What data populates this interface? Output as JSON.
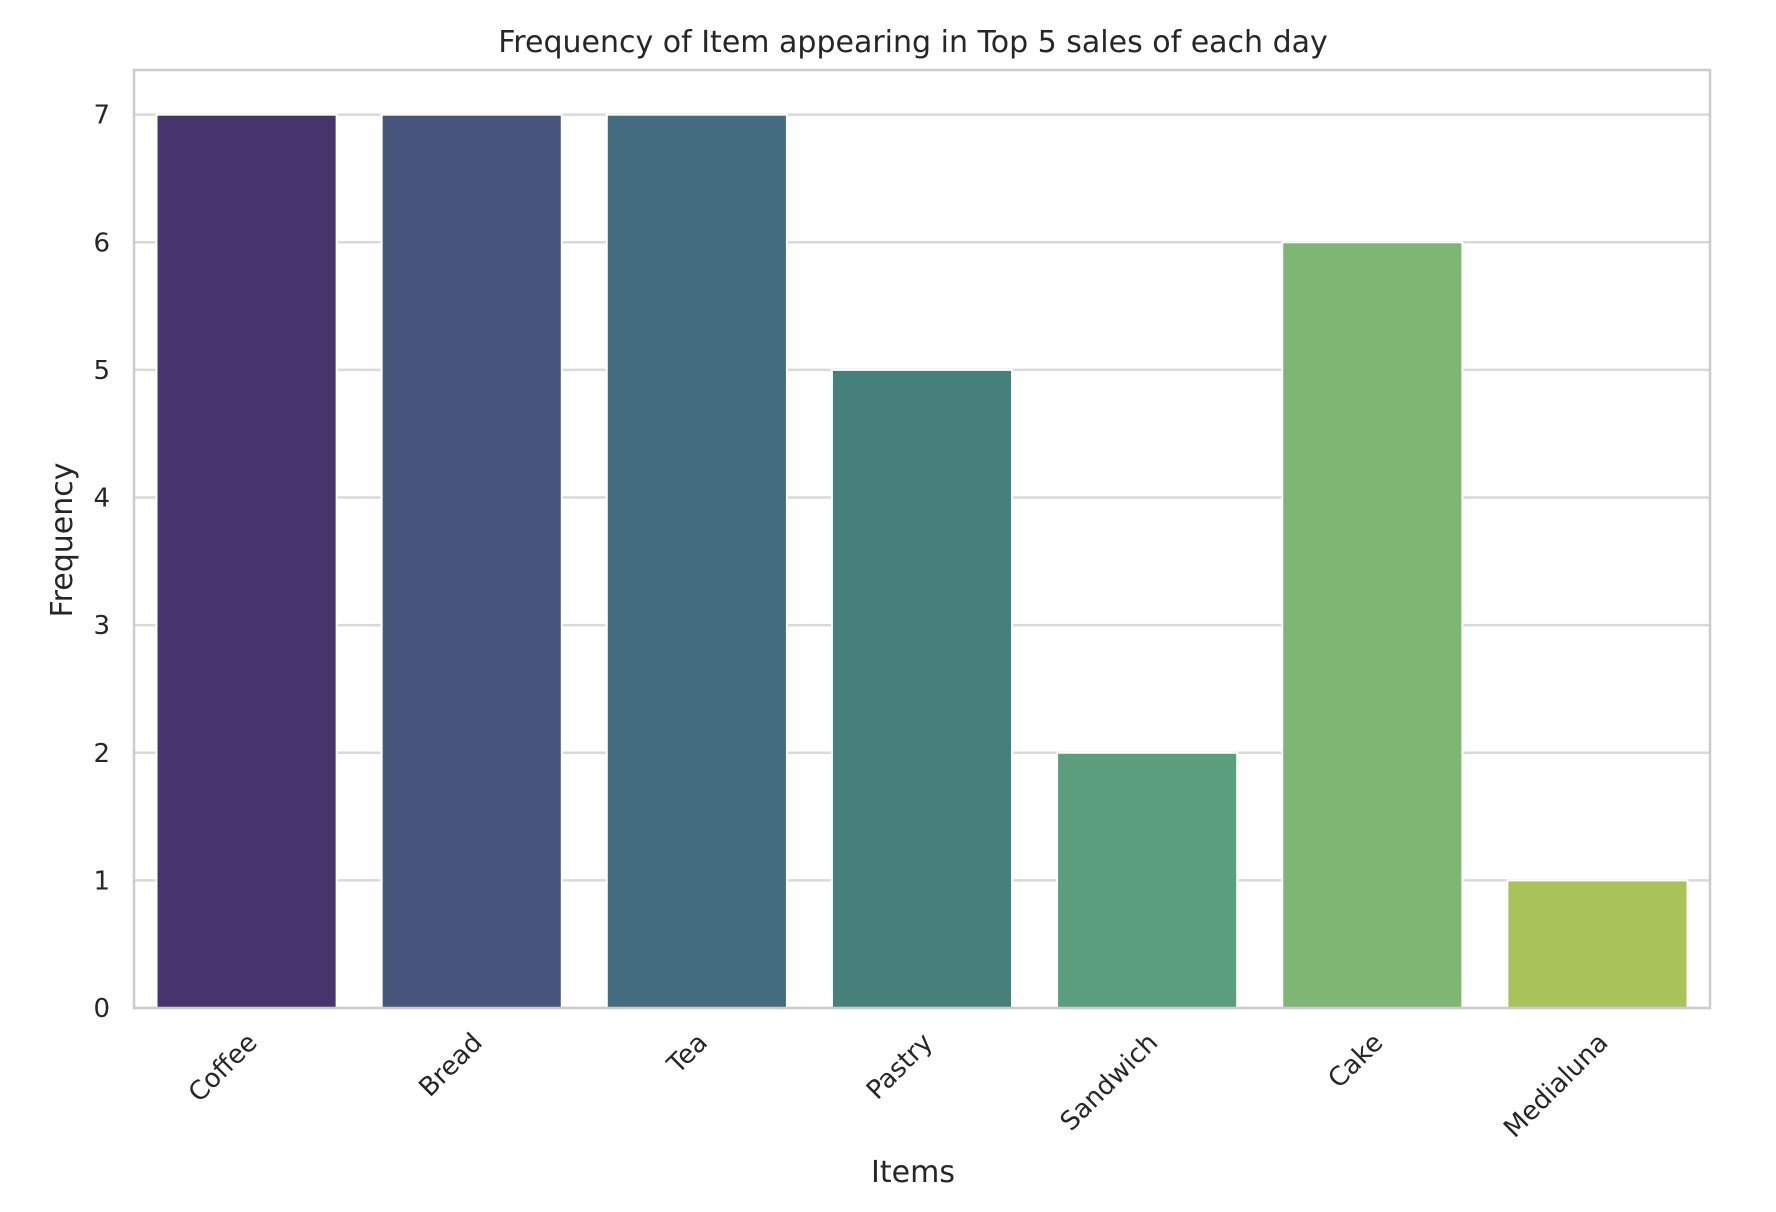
{
  "chart_data": {
    "type": "bar",
    "title": "Frequency of Item appearing in Top 5 sales of each day",
    "xlabel": "Items",
    "ylabel": "Frequency",
    "categories": [
      "Coffee",
      "Bread",
      "Tea",
      "Pastry",
      "Sandwich",
      "Cake",
      "Medialuna"
    ],
    "values": [
      7,
      7,
      7,
      5,
      2,
      6,
      1
    ],
    "colors": [
      "#47366e",
      "#48567d",
      "#446c7f",
      "#46807b",
      "#5a9e7e",
      "#7eb774",
      "#a9c35a"
    ],
    "ylim": [
      0,
      7.35
    ],
    "yticks": [
      0,
      1,
      2,
      3,
      4,
      5,
      6,
      7
    ],
    "grid": true,
    "legend": "none"
  }
}
